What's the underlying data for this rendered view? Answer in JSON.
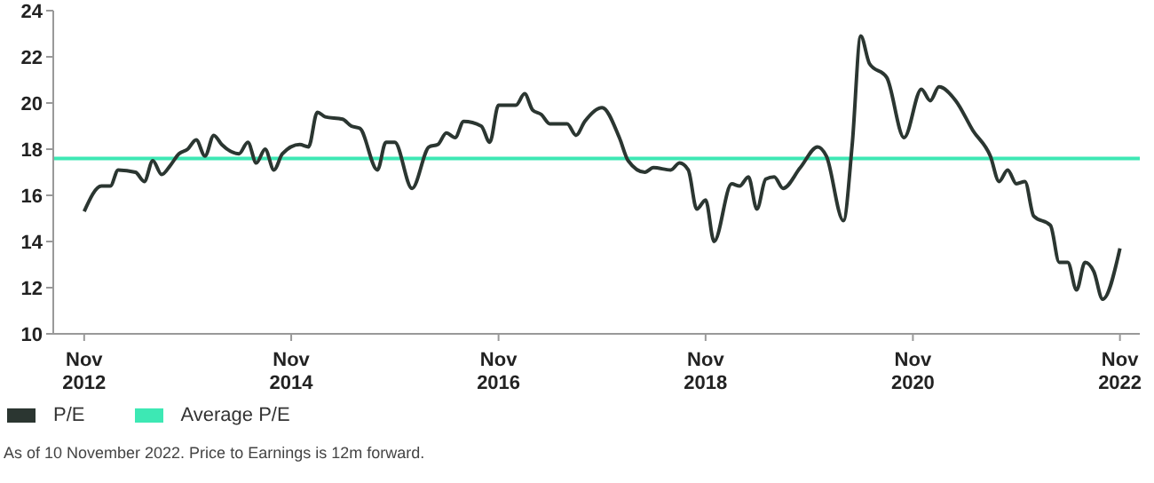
{
  "chart_data": {
    "type": "line",
    "x": [
      "2012-11",
      "2013-01",
      "2013-02",
      "2013-03",
      "2013-05",
      "2013-06",
      "2013-07",
      "2013-08",
      "2013-09",
      "2013-10",
      "2013-11",
      "2013-12",
      "2014-01",
      "2014-02",
      "2014-03",
      "2014-05",
      "2014-06",
      "2014-07",
      "2014-08",
      "2014-09",
      "2014-10",
      "2014-12",
      "2015-01",
      "2015-02",
      "2015-03",
      "2015-05",
      "2015-06",
      "2015-07",
      "2015-09",
      "2015-10",
      "2015-11",
      "2016-01",
      "2016-03",
      "2016-04",
      "2016-05",
      "2016-06",
      "2016-07",
      "2016-09",
      "2016-10",
      "2016-11",
      "2017-01",
      "2017-02",
      "2017-03",
      "2017-04",
      "2017-05",
      "2017-07",
      "2017-08",
      "2017-09",
      "2017-11",
      "2018-01",
      "2018-02",
      "2018-04",
      "2018-05",
      "2018-07",
      "2018-08",
      "2018-09",
      "2018-10",
      "2018-11",
      "2018-12",
      "2019-02",
      "2019-03",
      "2019-04",
      "2019-05",
      "2019-06",
      "2019-07",
      "2019-08",
      "2019-10",
      "2019-12",
      "2020-01",
      "2020-03",
      "2020-04",
      "2020-05",
      "2020-06",
      "2020-08",
      "2020-10",
      "2020-12",
      "2021-01",
      "2021-02",
      "2021-04",
      "2021-06",
      "2021-08",
      "2021-09",
      "2021-10",
      "2021-11",
      "2021-12",
      "2022-01",
      "2022-03",
      "2022-04",
      "2022-05",
      "2022-06",
      "2022-07",
      "2022-08",
      "2022-09",
      "2022-11"
    ],
    "series": [
      {
        "name": "P/E",
        "color": "#2b3631",
        "values": [
          15.3,
          16.4,
          16.4,
          17.1,
          17.0,
          16.6,
          17.5,
          16.9,
          17.3,
          17.8,
          18.0,
          18.4,
          17.7,
          18.6,
          18.2,
          17.8,
          18.3,
          17.4,
          18.0,
          17.1,
          17.8,
          18.2,
          18.1,
          19.6,
          19.4,
          19.3,
          19.0,
          18.9,
          17.1,
          18.3,
          18.3,
          16.3,
          18.1,
          18.2,
          18.7,
          18.5,
          19.2,
          19.0,
          18.3,
          19.9,
          19.9,
          20.4,
          19.7,
          19.5,
          19.1,
          19.1,
          18.6,
          19.2,
          19.8,
          18.5,
          17.5,
          17.0,
          17.2,
          17.1,
          17.4,
          17.1,
          15.4,
          15.8,
          14.0,
          16.5,
          16.4,
          16.8,
          15.4,
          16.7,
          16.8,
          16.3,
          17.2,
          18.1,
          17.7,
          14.9,
          18.2,
          22.9,
          21.7,
          21.1,
          18.5,
          20.6,
          20.1,
          20.7,
          20.1,
          18.8,
          17.7,
          16.6,
          17.1,
          16.5,
          16.6,
          15.1,
          14.7,
          13.1,
          13.1,
          11.9,
          13.1,
          12.7,
          11.5,
          13.7
        ]
      }
    ],
    "ref_lines": [
      {
        "axis": "y",
        "value": 17.6,
        "label": "Average P/E",
        "color": "#3de8b4"
      }
    ],
    "xlim": [
      "2012-07-15",
      "2023-01-10"
    ],
    "xticks": [
      {
        "value": "2012-11",
        "label": "Nov 2012"
      },
      {
        "value": "2014-11",
        "label": "Nov 2014"
      },
      {
        "value": "2016-11",
        "label": "Nov 2016"
      },
      {
        "value": "2018-11",
        "label": "Nov 2018"
      },
      {
        "value": "2020-11",
        "label": "Nov 2020"
      },
      {
        "value": "2022-11",
        "label": "Nov 2022"
      }
    ],
    "ylim": [
      10,
      24
    ],
    "yticks": [
      10,
      12,
      14,
      16,
      18,
      20,
      22,
      24
    ],
    "grid": false,
    "legend": "bottom left",
    "marker": "none",
    "line_style": "solid",
    "annotations": [
      "As of 10 November 2022. Price to Earnings is 12m forward."
    ]
  }
}
